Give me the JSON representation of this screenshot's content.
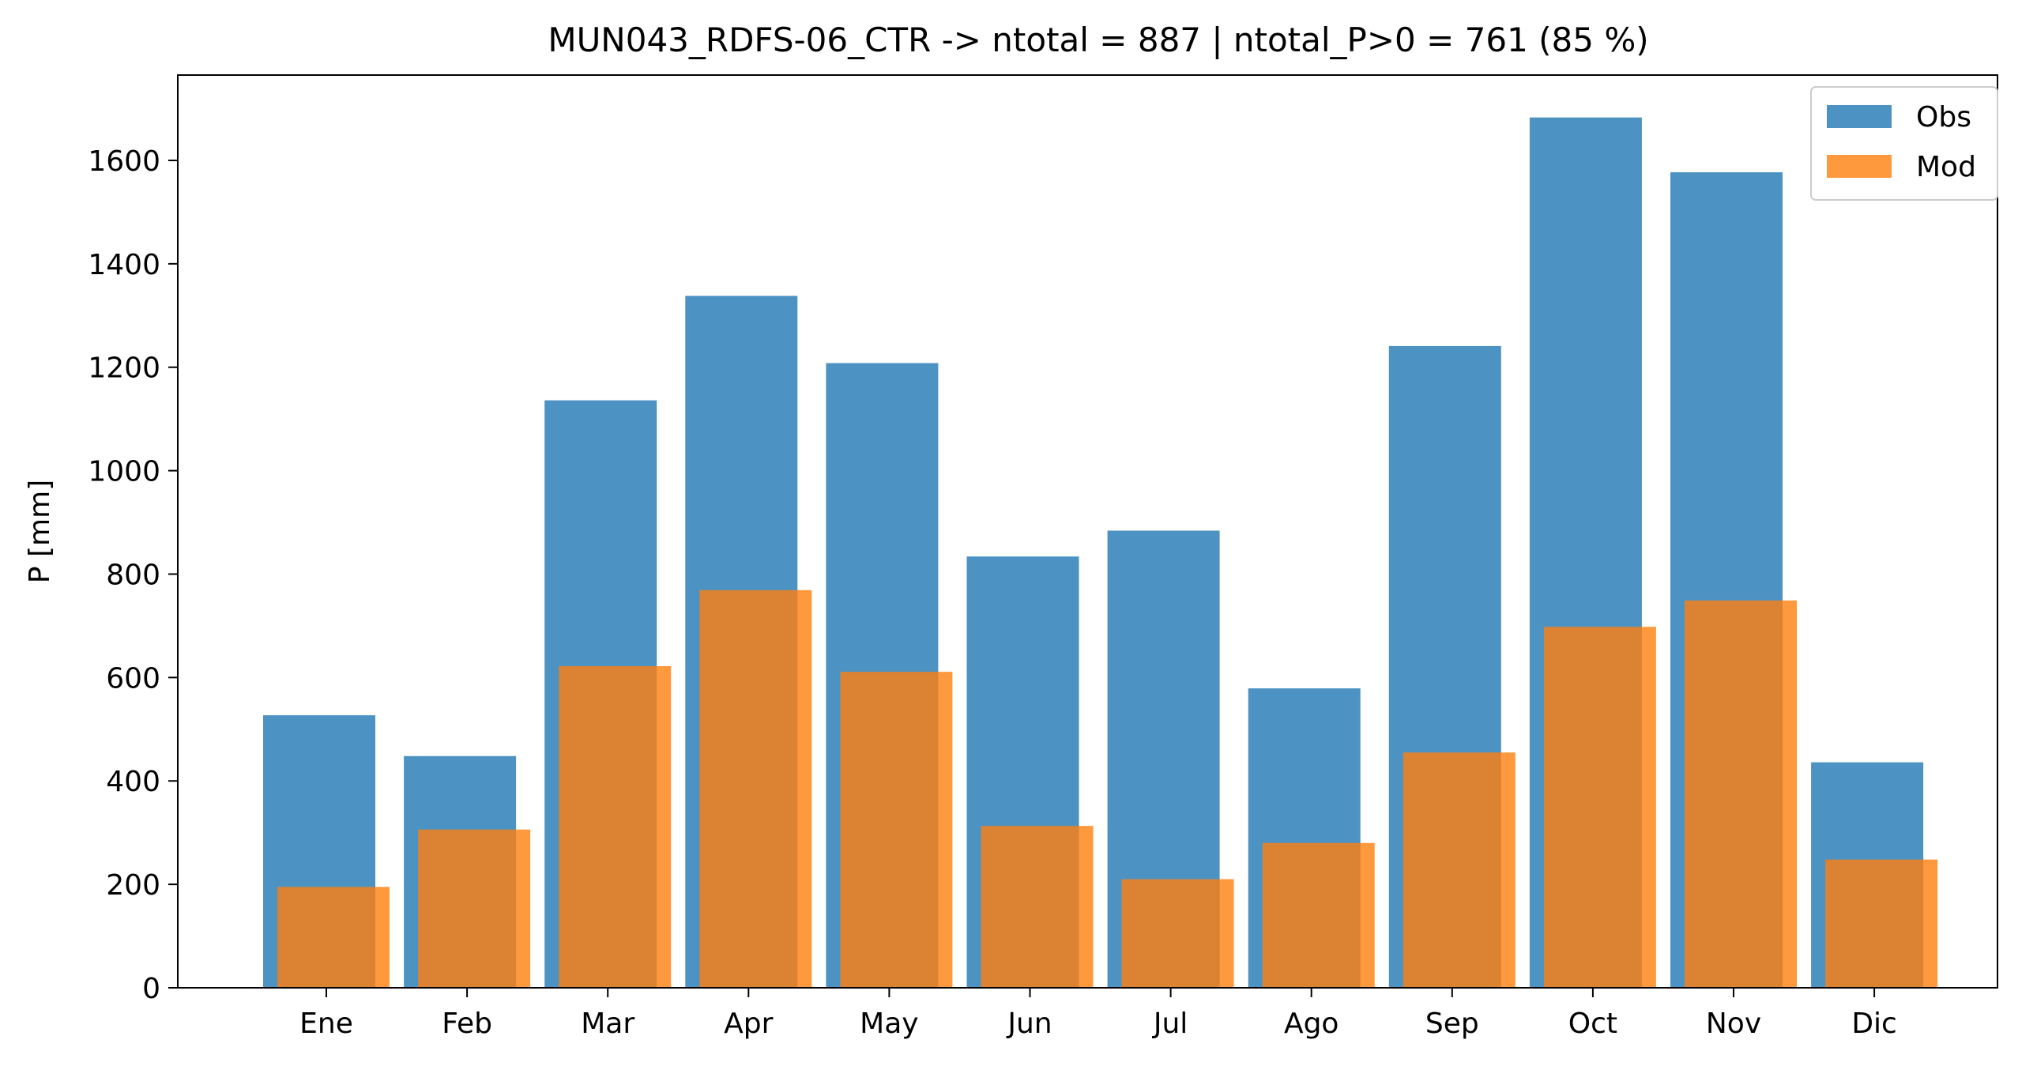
{
  "chart_data": {
    "type": "bar",
    "title": "MUN043_RDFS-06_CTR -> ntotal = 887 | ntotal_P>0 = 761 (85 %)",
    "xlabel": "",
    "ylabel": "P [mm]",
    "categories": [
      "Ene",
      "Feb",
      "Mar",
      "Apr",
      "May",
      "Jun",
      "Jul",
      "Ago",
      "Sep",
      "Oct",
      "Nov",
      "Dic"
    ],
    "series": [
      {
        "name": "Obs",
        "color": "#1f77b4",
        "opacity": 0.8,
        "values": [
          527,
          448,
          1136,
          1338,
          1208,
          834,
          884,
          579,
          1241,
          1683,
          1577,
          436
        ]
      },
      {
        "name": "Mod",
        "color": "#ff7f0e",
        "opacity": 0.8,
        "values": [
          195,
          306,
          622,
          769,
          611,
          313,
          210,
          280,
          455,
          698,
          749,
          248
        ]
      }
    ],
    "ylim": [
      0,
      1765
    ],
    "yticks": [
      0,
      200,
      400,
      600,
      800,
      1000,
      1200,
      1400,
      1600
    ],
    "grid": false,
    "legend_position": "top-right"
  }
}
